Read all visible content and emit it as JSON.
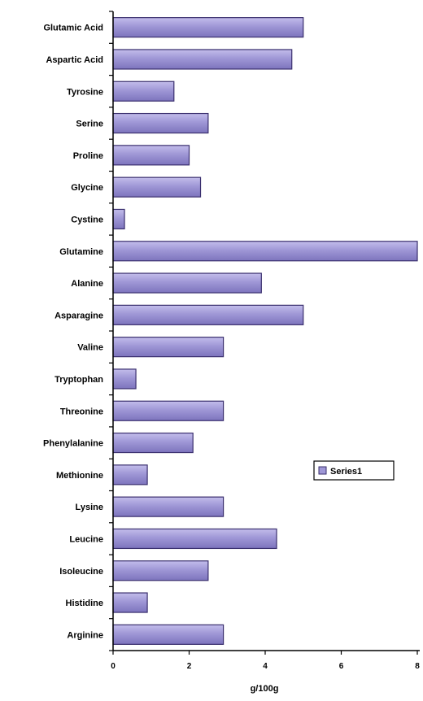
{
  "chart_data": {
    "type": "bar",
    "orientation": "horizontal",
    "categories": [
      "Glutamic Acid",
      "Aspartic Acid",
      "Tyrosine",
      "Serine",
      "Proline",
      "Glycine",
      "Cystine",
      "Glutamine",
      "Alanine",
      "Asparagine",
      "Valine",
      "Tryptophan",
      "Threonine",
      "Phenylalanine",
      "Methionine",
      "Lysine",
      "Leucine",
      "Isoleucine",
      "Histidine",
      "Arginine"
    ],
    "series": [
      {
        "name": "Series1",
        "values": [
          5.0,
          4.7,
          1.6,
          2.5,
          2.0,
          2.3,
          0.3,
          8.0,
          3.9,
          5.0,
          2.9,
          0.6,
          2.9,
          2.1,
          0.9,
          2.9,
          4.3,
          2.5,
          0.9,
          2.9
        ]
      }
    ],
    "xlabel": "g/100g",
    "xlim": [
      0,
      8
    ],
    "xticks": [
      "0",
      "2",
      "4",
      "6",
      "8"
    ],
    "grid": false,
    "legend_position": "right",
    "colors": {
      "bar_fill": "#9f97d6",
      "bar_highlight": "#c3bdeb",
      "bar_edge": "#3a2f6e",
      "axis": "#000000"
    }
  }
}
